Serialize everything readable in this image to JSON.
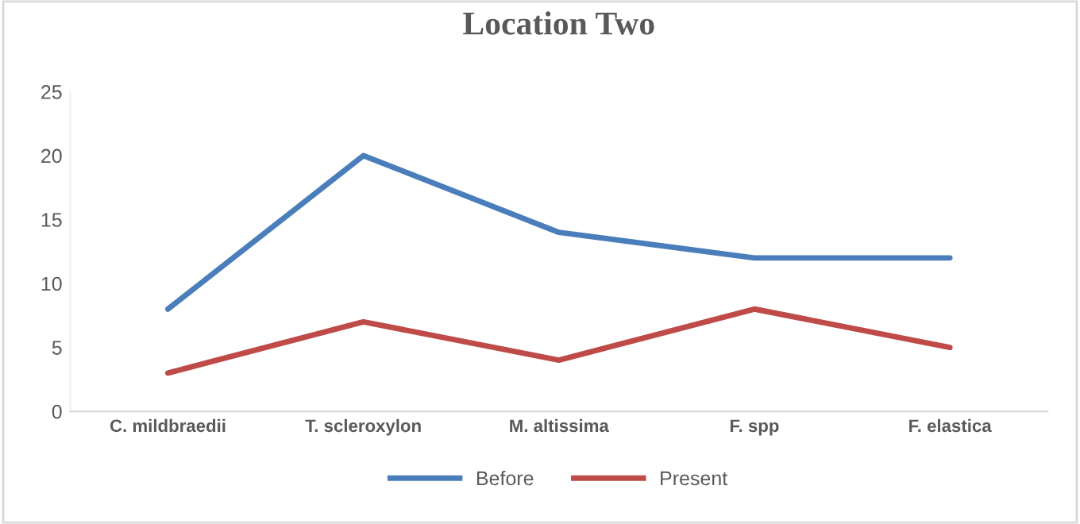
{
  "chart_data": {
    "type": "line",
    "title": "Location Two",
    "categories": [
      "C. mildbraedii",
      "T. scleroxylon",
      "M. altissima",
      "F. spp",
      "F. elastica"
    ],
    "series": [
      {
        "name": "Before",
        "color": "#4a7ebb",
        "values": [
          8,
          20,
          14,
          12,
          12
        ]
      },
      {
        "name": "Present",
        "color": "#be4b48",
        "values": [
          3,
          7,
          4,
          8,
          5
        ]
      }
    ],
    "ylim": [
      0,
      25
    ],
    "yticks": [
      0,
      5,
      10,
      15,
      20,
      25
    ],
    "grid": false,
    "legend": "bottom",
    "marker": "none",
    "line_style": "solid"
  }
}
